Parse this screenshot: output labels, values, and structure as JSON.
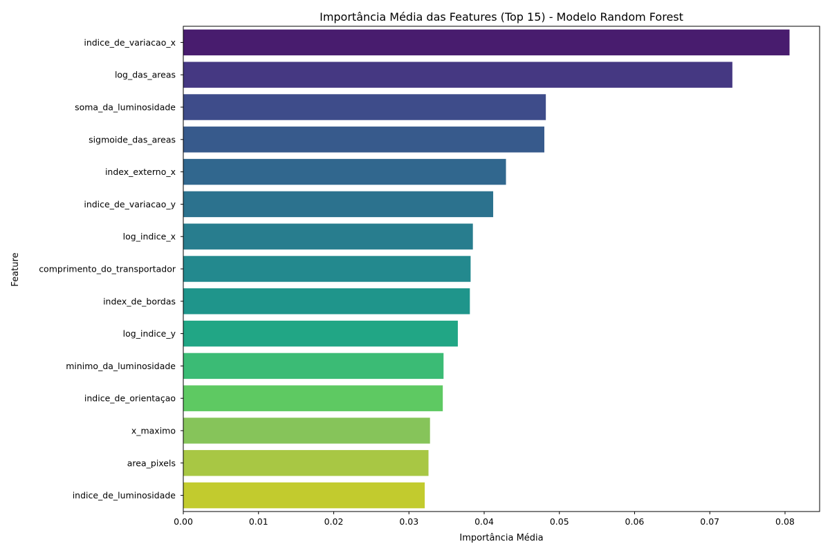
{
  "chart_data": {
    "type": "bar",
    "orientation": "horizontal",
    "title": "Importância Média das Features (Top 15) - Modelo Random Forest",
    "xlabel": "Importância Média",
    "ylabel": "Feature",
    "xlim": [
      0,
      0.0846
    ],
    "xticks": [
      0.0,
      0.01,
      0.02,
      0.03,
      0.04,
      0.05,
      0.06,
      0.07,
      0.08
    ],
    "xtick_labels": [
      "0.00",
      "0.01",
      "0.02",
      "0.03",
      "0.04",
      "0.05",
      "0.06",
      "0.07",
      "0.08"
    ],
    "grid": false,
    "categories": [
      "indice_de_variacao_x",
      "log_das_areas",
      "soma_da_luminosidade",
      "sigmoide_das_areas",
      "index_externo_x",
      "indice_de_variacao_y",
      "log_indice_x",
      "comprimento_do_transportador",
      "index_de_bordas",
      "log_indice_y",
      "minimo_da_luminosidade",
      "indice_de_orientaçao",
      "x_maximo",
      "area_pixels",
      "indice_de_luminosidade"
    ],
    "values": [
      0.0806,
      0.073,
      0.0482,
      0.048,
      0.0429,
      0.0412,
      0.0385,
      0.0382,
      0.0381,
      0.0365,
      0.0346,
      0.0345,
      0.0328,
      0.0326,
      0.0321
    ],
    "colors": [
      "#481c6e",
      "#453882",
      "#3e4c8a",
      "#375a8c",
      "#31678e",
      "#2c728e",
      "#287d8e",
      "#23898e",
      "#1f958b",
      "#21a685",
      "#3bbb75",
      "#5ec962",
      "#86c45a",
      "#a8c744",
      "#c2cb2e"
    ]
  }
}
